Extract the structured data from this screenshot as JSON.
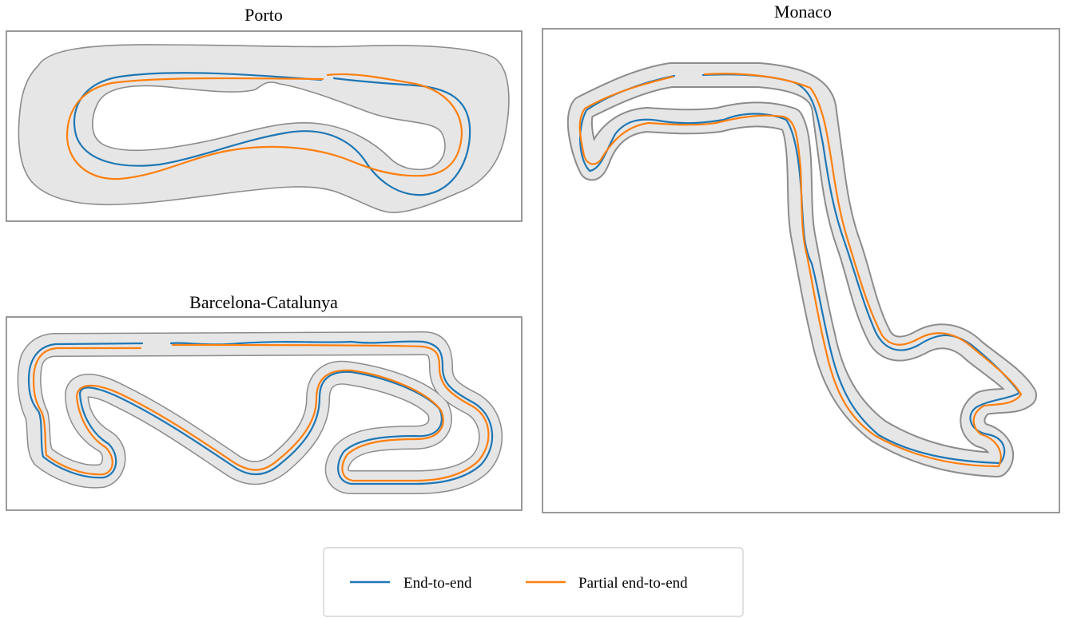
{
  "colors": {
    "end_to_end": "#1f77b4",
    "partial_end_to_end": "#ff7f0e",
    "track_fill": "#e6e6e6",
    "track_edge": "#8c8c8c",
    "frame": "#808080"
  },
  "panels": {
    "porto": {
      "title": "Porto"
    },
    "monaco": {
      "title": "Monaco"
    },
    "barcelona": {
      "title": "Barcelona-Catalunya"
    }
  },
  "legend": {
    "items": [
      {
        "label": "End-to-end",
        "color": "#1f77b4"
      },
      {
        "label": "Partial end-to-end",
        "color": "#ff7f0e"
      }
    ]
  }
}
